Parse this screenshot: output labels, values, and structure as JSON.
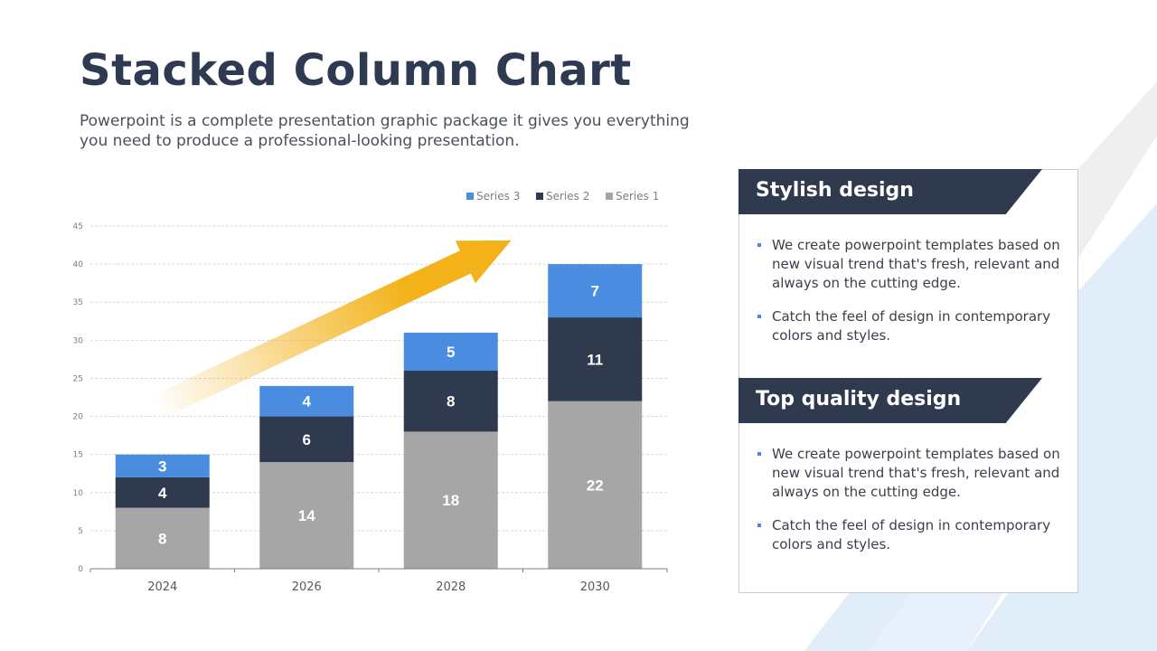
{
  "title": "Stacked Column Chart",
  "subtitle": "Powerpoint is a complete presentation graphic package it gives you everything you need to produce a professional-looking presentation.",
  "colors": {
    "series1": "#a6a6a6",
    "series2": "#2f3a4f",
    "series3": "#4a8de0",
    "arrow": "#f3b21a",
    "header": "#2f3a4f",
    "bullet": "#4a8de0"
  },
  "chart_data": {
    "type": "bar",
    "stacked": true,
    "categories": [
      "2024",
      "2026",
      "2028",
      "2030"
    ],
    "series": [
      {
        "name": "Series 1",
        "values": [
          8,
          14,
          18,
          22
        ]
      },
      {
        "name": "Series 2",
        "values": [
          4,
          6,
          8,
          11
        ]
      },
      {
        "name": "Series 3",
        "values": [
          3,
          4,
          5,
          7
        ]
      }
    ],
    "yticks": [
      0,
      5,
      10,
      15,
      20,
      25,
      30,
      35,
      40,
      45
    ],
    "ylim": [
      0,
      45
    ],
    "grid": true,
    "legend": "top-right",
    "legend_order": [
      "Series 3",
      "Series 2",
      "Series 1"
    ],
    "annotation": "upward trend arrow"
  },
  "cards": [
    {
      "heading": "Stylish design",
      "bullets": [
        "We create powerpoint templates based on new visual trend that's fresh, relevant and always on the cutting edge.",
        "Catch the feel of design in contemporary colors and styles."
      ]
    },
    {
      "heading": "Top quality design",
      "bullets": [
        "We create powerpoint templates based on new visual trend that's fresh, relevant and always on the cutting edge.",
        "Catch the feel of design in contemporary colors and styles."
      ]
    }
  ]
}
